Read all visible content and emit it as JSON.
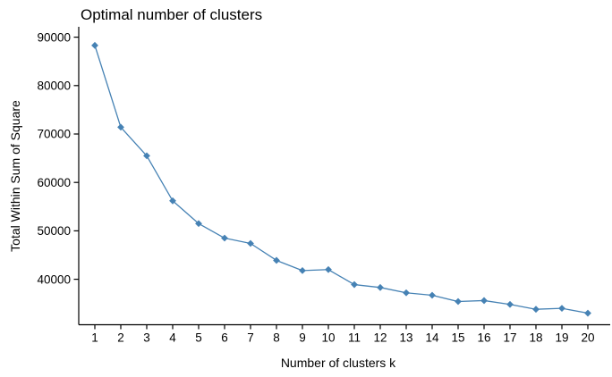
{
  "title": "Optimal number of clusters",
  "chart_data": {
    "type": "line",
    "title": "Optimal number of clusters",
    "xlabel": "Number of clusters k",
    "ylabel": "Total Within Sum of Square",
    "series": [
      {
        "name": "Total within sum of square",
        "x": [
          1,
          2,
          3,
          4,
          5,
          6,
          7,
          8,
          9,
          10,
          11,
          12,
          13,
          14,
          15,
          16,
          17,
          18,
          19,
          20
        ],
        "values": [
          88300,
          71400,
          65500,
          56200,
          51500,
          48500,
          47400,
          43900,
          41800,
          42000,
          38900,
          38300,
          37200,
          36700,
          35400,
          35600,
          34800,
          33800,
          34000,
          33000
        ]
      }
    ],
    "x_ticks": [
      1,
      2,
      3,
      4,
      5,
      6,
      7,
      8,
      9,
      10,
      11,
      12,
      13,
      14,
      15,
      16,
      17,
      18,
      19,
      20
    ],
    "y_ticks": [
      90000,
      80000,
      70000,
      60000,
      50000,
      40000
    ],
    "xlim": [
      0.4,
      20.9
    ],
    "ylim": [
      31500,
      90500
    ],
    "grid": false,
    "legend_position": "none",
    "marker": "diamond",
    "line_color": "#4682B4",
    "axis_color": "#000000",
    "background_color": "#FFFFFF"
  }
}
